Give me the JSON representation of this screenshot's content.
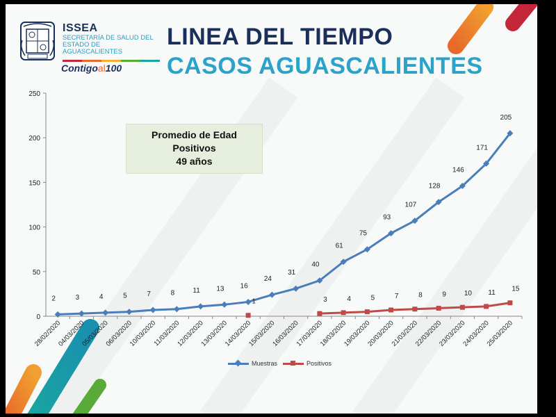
{
  "header": {
    "org_name": "ISSEA",
    "org_subtitle": "SECRETARÍA DE SALUD DEL ESTADO DE AGUASCALIENTES",
    "slogan_main": "Contigo",
    "slogan_al": "al",
    "slogan_num": "100",
    "title_line1": "LINEA DEL TIEMPO",
    "title_line2": "CASOS AGUASCALIENTES"
  },
  "callout": {
    "line1": "Promedio de Edad",
    "line2": "Positivos",
    "line3": "49 años"
  },
  "colors": {
    "muestras": "#4a7ebb",
    "positivos": "#be4b48",
    "title_dark": "#1a2f5a",
    "title_light": "#2aa2c9",
    "accent_orange": "#e86a2a",
    "accent_red": "#c4273a",
    "accent_teal": "#1aa5a0",
    "accent_green": "#5aaa3a"
  },
  "chart_data": {
    "type": "line",
    "categories": [
      "28/02/2020",
      "04/03/2020",
      "05/03/2020",
      "06/03/2020",
      "10/03/2020",
      "11/03/2020",
      "12/03/2020",
      "13/03/2020",
      "14/03/2020",
      "15/03/2020",
      "16/03/2020",
      "17/03/2020",
      "18/03/2020",
      "19/03/2020",
      "20/03/2020",
      "21/03/2020",
      "22/03/2020",
      "23/03/2020",
      "24/03/2020",
      "25/03/2020"
    ],
    "series": [
      {
        "name": "Muestras",
        "marker": "diamond",
        "values": [
          2,
          3,
          4,
          5,
          7,
          8,
          11,
          13,
          16,
          24,
          31,
          40,
          61,
          75,
          93,
          107,
          128,
          146,
          171,
          205
        ]
      },
      {
        "name": "Positivos",
        "marker": "square",
        "values": [
          null,
          null,
          null,
          null,
          null,
          null,
          null,
          null,
          1,
          null,
          null,
          3,
          4,
          5,
          7,
          8,
          9,
          10,
          11,
          15
        ]
      }
    ],
    "ylim": [
      0,
      250
    ],
    "yticks": [
      0,
      50,
      100,
      150,
      200,
      250
    ],
    "title": "",
    "xlabel": "",
    "ylabel": "",
    "legend": "bottom-center"
  }
}
